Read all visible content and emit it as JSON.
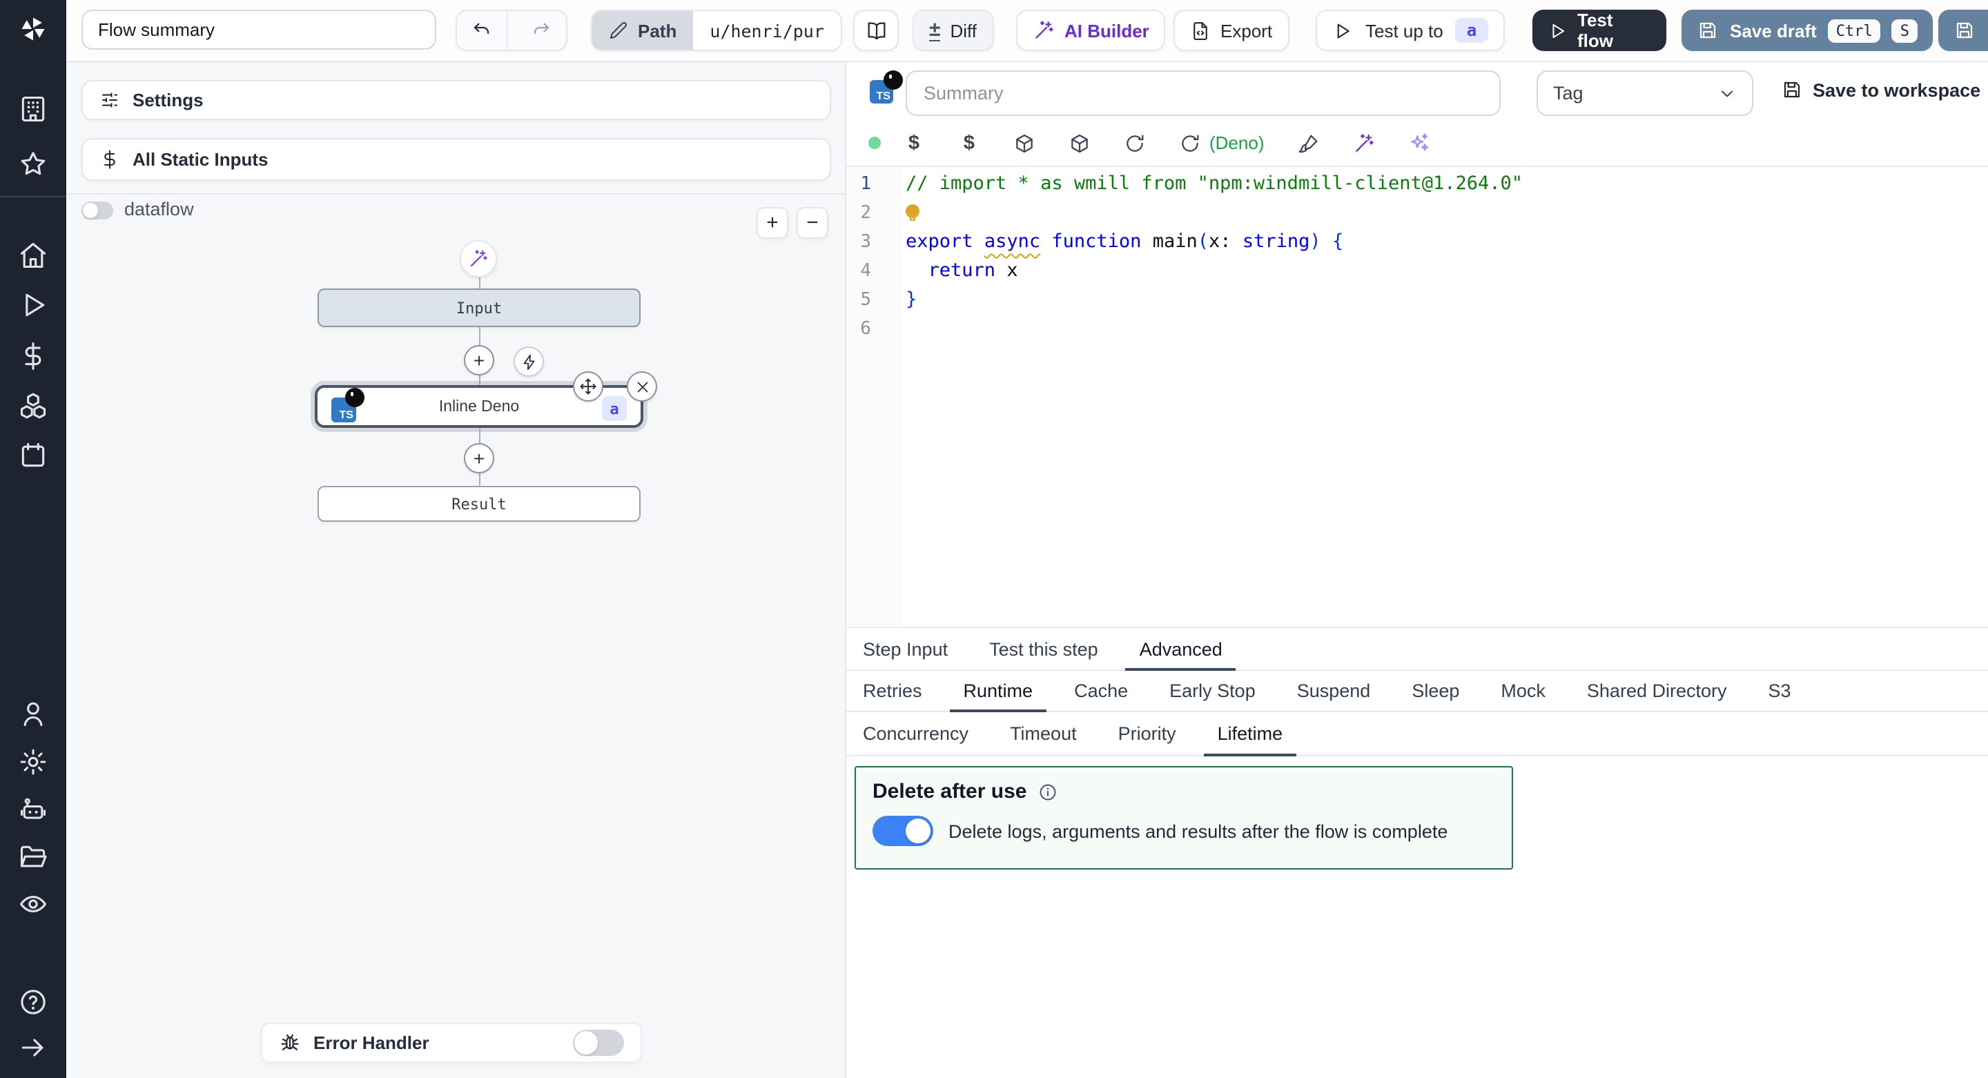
{
  "topbar": {
    "flow_summary_value": "Flow summary",
    "path_label": "Path",
    "path_value": "u/henri/pur",
    "diff_label": "Diff",
    "ai_builder_label": "AI Builder",
    "export_label": "Export",
    "test_up_to_label": "Test up to",
    "test_up_to_badge": "a",
    "test_flow_label": "Test flow",
    "save_draft_label": "Save draft",
    "kbd_ctrl": "Ctrl",
    "kbd_s": "S"
  },
  "flow_panel": {
    "settings_label": "Settings",
    "static_inputs_label": "All Static Inputs",
    "dataflow_label": "dataflow",
    "zoom_in": "+",
    "zoom_out": "−",
    "graph": {
      "input_label": "Input",
      "step_label": "Inline Deno",
      "step_badge": "a",
      "result_label": "Result"
    },
    "error_handler_label": "Error Handler"
  },
  "editor_panel": {
    "summary_placeholder": "Summary",
    "tag_label": "Tag",
    "save_to_workspace_label": "Save to workspace",
    "lang_indicator": "(Deno)",
    "code": {
      "lines": [
        {
          "tokens": [
            {
              "t": "// import * as wmill from \"npm:windmill-client@1.264.0\"",
              "c": "cm"
            }
          ]
        },
        {
          "bulb": true,
          "tokens": []
        },
        {
          "tokens": [
            {
              "t": "export ",
              "c": "kw"
            },
            {
              "t": "async",
              "c": "wavy"
            },
            {
              "t": " ",
              "c": "pl"
            },
            {
              "t": "function ",
              "c": "kw"
            },
            {
              "t": "main",
              "c": "id"
            },
            {
              "t": "(",
              "c": "br"
            },
            {
              "t": "x",
              "c": "pl"
            },
            {
              "t": ": ",
              "c": "pl"
            },
            {
              "t": "string",
              "c": "kw"
            },
            {
              "t": ")",
              "c": "br"
            },
            {
              "t": " ",
              "c": "pl"
            },
            {
              "t": "{",
              "c": "br"
            }
          ]
        },
        {
          "tokens": [
            {
              "t": "  ",
              "c": "pl"
            },
            {
              "t": "return",
              "c": "kw"
            },
            {
              "t": " x",
              "c": "pl"
            }
          ]
        },
        {
          "tokens": [
            {
              "t": "}",
              "c": "br"
            }
          ]
        },
        {
          "tokens": []
        }
      ]
    }
  },
  "tabs": {
    "primary": [
      {
        "label": "Step Input"
      },
      {
        "label": "Test this step"
      },
      {
        "label": "Advanced",
        "active": true
      }
    ],
    "advanced": [
      {
        "label": "Retries"
      },
      {
        "label": "Runtime",
        "active": true
      },
      {
        "label": "Cache"
      },
      {
        "label": "Early Stop"
      },
      {
        "label": "Suspend"
      },
      {
        "label": "Sleep"
      },
      {
        "label": "Mock"
      },
      {
        "label": "Shared Directory"
      },
      {
        "label": "S3"
      }
    ],
    "runtime": [
      {
        "label": "Concurrency"
      },
      {
        "label": "Timeout"
      },
      {
        "label": "Priority"
      },
      {
        "label": "Lifetime",
        "active": true
      }
    ]
  },
  "lifetime_section": {
    "title": "Delete after use",
    "toggle_label": "Delete logs, arguments and results after the flow is complete",
    "toggle_on": true
  },
  "colors": {
    "accent_toggle_blue": "#3b82f6",
    "save_draft_blue": "#64819d",
    "dark_button": "#272e3a",
    "ai_purple": "#6d28d9",
    "deno_green": "#16a34a",
    "lifetime_border_green": "#1c7a3f",
    "badge_bg": "#e0e7ff",
    "badge_text": "#4f46e5",
    "ts_blue": "#3178c6",
    "sidebar_bg": "#1d2430"
  }
}
